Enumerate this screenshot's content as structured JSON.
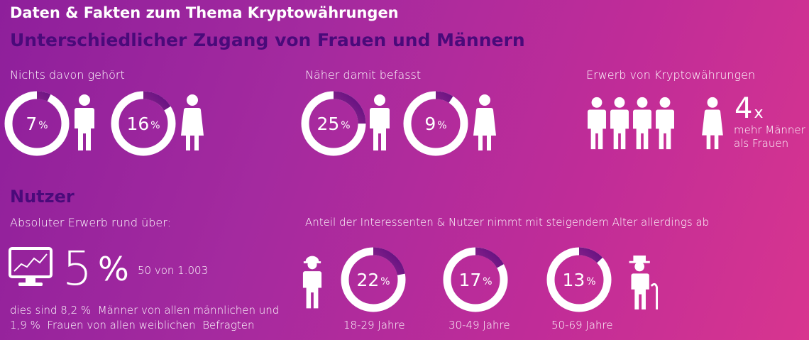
{
  "header": {
    "title": "Daten & Fakten zum Thema Kryptowährungen",
    "subtitle": "Unterschiedlicher Zugang von Frauen und Männern"
  },
  "sections": {
    "nichts": {
      "label": "Nichts davon gehört",
      "men": {
        "value": "7",
        "unit": "%",
        "fraction": 0.07
      },
      "women": {
        "value": "16",
        "unit": "%",
        "fraction": 0.16
      }
    },
    "naeher": {
      "label": "Näher damit befasst",
      "men": {
        "value": "25",
        "unit": "%",
        "fraction": 0.25
      },
      "women": {
        "value": "9",
        "unit": "%",
        "fraction": 0.09
      }
    },
    "erwerb": {
      "label": "Erwerb von Kryptowährungen",
      "factor": "4",
      "factor_suffix": "x",
      "desc_line1": "mehr Männer",
      "desc_line2": "als Frauen"
    }
  },
  "nutzer": {
    "heading": "Nutzer",
    "absolute_label": "Absoluter Erwerb rund über:",
    "big_value": "5",
    "big_unit": "%",
    "count": "50 von 1.003",
    "line1": "dies sind 8,2 %  Männer von allen männlichen und",
    "line2": "1,9 %  Frauen von allen weiblichen  Befragten"
  },
  "age": {
    "label": "Anteil der Interessenten & Nutzer nimmt mit steigendem Alter allerdings ab",
    "groups": [
      {
        "value": "22",
        "unit": "%",
        "fraction": 0.22,
        "range": "18-29 Jahre"
      },
      {
        "value": "17",
        "unit": "%",
        "fraction": 0.17,
        "range": "30-49 Jahre"
      },
      {
        "value": "13",
        "unit": "%",
        "fraction": 0.13,
        "range": "50-69 Jahre"
      }
    ]
  },
  "colors": {
    "ring_base": "#ffffff",
    "ring_arc": "#5b0d7f",
    "ring_arc_light": "#e04aa0",
    "heading_dark": "#4a0a7a"
  },
  "icons": [
    "male-figure-icon",
    "female-figure-icon",
    "monitor-chart-icon",
    "young-person-icon",
    "elderly-person-icon"
  ]
}
